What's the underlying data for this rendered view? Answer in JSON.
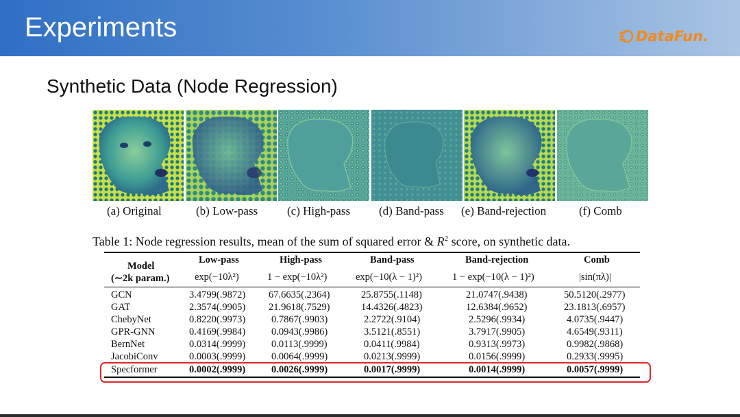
{
  "header": {
    "title": "Experiments",
    "logo_text": "DataFun."
  },
  "slide": {
    "subtitle": "Synthetic Data (Node Regression)"
  },
  "figure": {
    "panels": [
      {
        "caption": "(a) Original",
        "type": "original"
      },
      {
        "caption": "(b) Low-pass",
        "type": "lowpass"
      },
      {
        "caption": "(c) High-pass",
        "type": "highpass"
      },
      {
        "caption": "(d) Band-pass",
        "type": "bandpass"
      },
      {
        "caption": "(e) Band-rejection",
        "type": "bandreject"
      },
      {
        "caption": "(f) Comb",
        "type": "comb"
      }
    ]
  },
  "table": {
    "caption_prefix": "Table 1: Node regression results, mean of the sum of squared error & ",
    "caption_symbol": "R",
    "caption_sup": "2",
    "caption_suffix": " score, on synthetic data.",
    "model_header": "Model",
    "model_subheader": "(∼2k param.)",
    "columns": [
      {
        "name": "Low-pass",
        "formula": "exp(−10λ²)"
      },
      {
        "name": "High-pass",
        "formula": "1 − exp(−10λ²)"
      },
      {
        "name": "Band-pass",
        "formula": "exp(−10(λ − 1)²)"
      },
      {
        "name": "Band-rejection",
        "formula": "1 − exp(−10(λ − 1)²)"
      },
      {
        "name": "Comb",
        "formula": "|sin(πλ)|"
      }
    ],
    "rows": [
      {
        "model": "GCN",
        "values": [
          "3.4799(.9872)",
          "67.6635(.2364)",
          "25.8755(.1148)",
          "21.0747(.9438)",
          "50.5120(.2977)"
        ]
      },
      {
        "model": "GAT",
        "values": [
          "2.3574(.9905)",
          "21.9618(.7529)",
          "14.4326(.4823)",
          "12.6384(.9652)",
          "23.1813(.6957)"
        ]
      },
      {
        "model": "ChebyNet",
        "values": [
          "0.8220(.9973)",
          "0.7867(.9903)",
          "2.2722(.9104)",
          "2.5296(.9934)",
          "4.0735(.9447)"
        ]
      },
      {
        "model": "GPR-GNN",
        "values": [
          "0.4169(.9984)",
          "0.0943(.9986)",
          "3.5121(.8551)",
          "3.7917(.9905)",
          "4.6549(.9311)"
        ]
      },
      {
        "model": "BernNet",
        "values": [
          "0.0314(.9999)",
          "0.0113(.9999)",
          "0.0411(.9984)",
          "0.9313(.9973)",
          "0.9982(.9868)"
        ]
      },
      {
        "model": "JacobiConv",
        "values": [
          "0.0003(.9999)",
          "0.0064(.9999)",
          "0.0213(.9999)",
          "0.0156(.9999)",
          "0.2933(.9995)"
        ]
      },
      {
        "model": "Specformer",
        "values": [
          "0.0002(.9999)",
          "0.0026(.9999)",
          "0.0017(.9999)",
          "0.0014(.9999)",
          "0.0057(.9999)"
        ],
        "bold": true,
        "highlighted": true
      }
    ]
  },
  "colors": {
    "header_start": "#2f6fc4",
    "header_end": "#a9c4e4",
    "logo": "#f08a1c",
    "highlight_box": "#e0242a"
  }
}
